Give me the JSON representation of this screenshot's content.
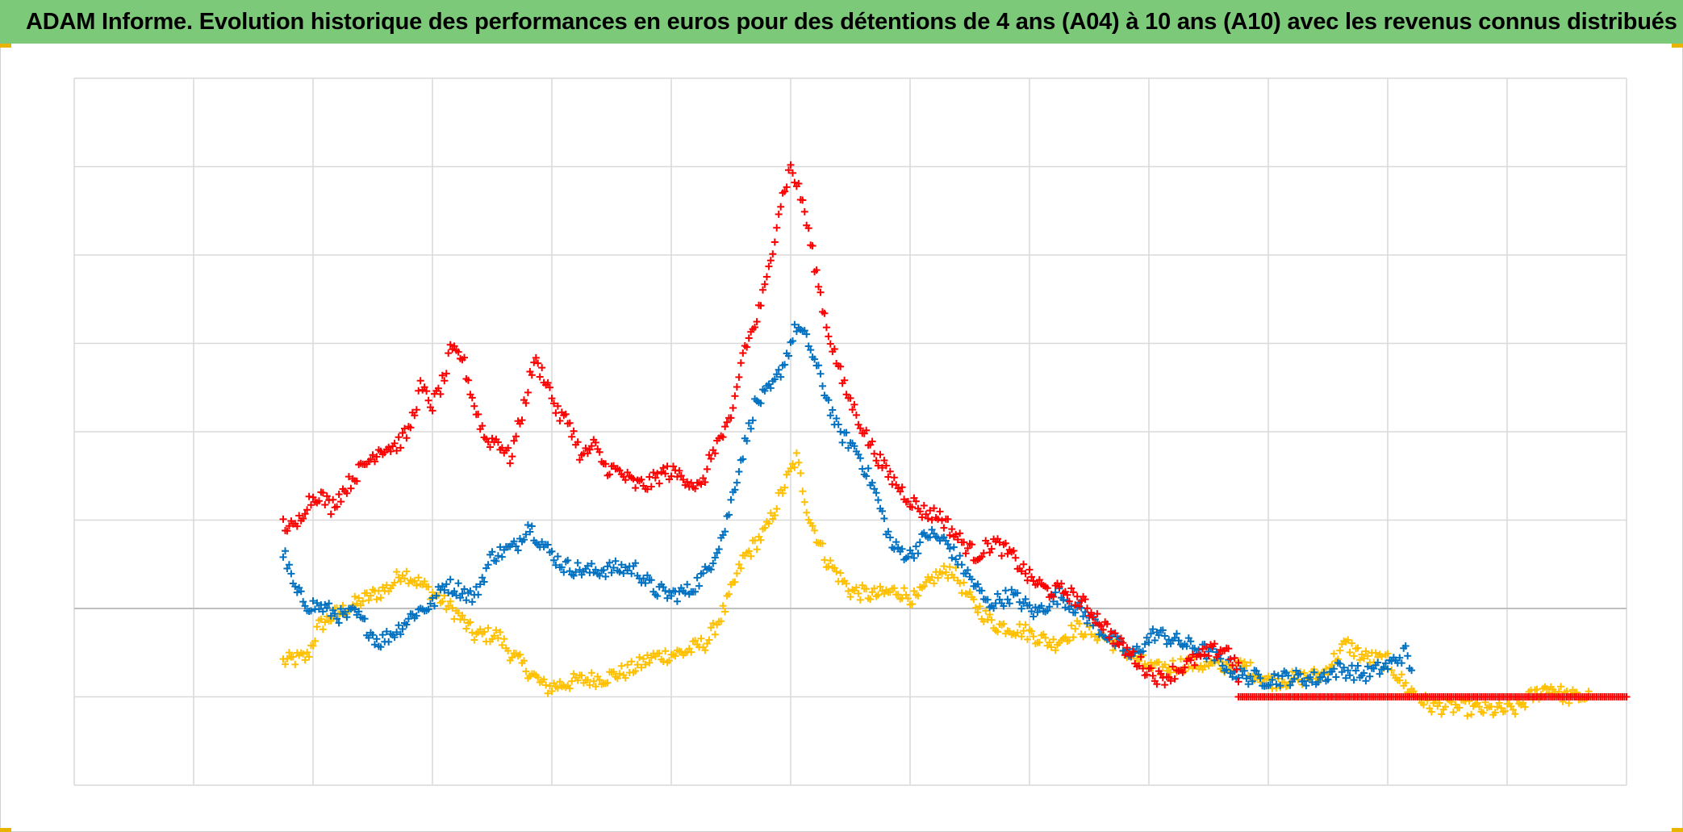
{
  "title": "ADAM Informe. Evolution historique des performances en euros pour des détentions de 4 ans (A04) à 10 ans (A10) avec les revenus connus distribués",
  "colors": {
    "title_background": "#7dc97a",
    "grid": "#d9d9d9",
    "zero_line": "#bfbfbf",
    "corner_accent": "#e8b400"
  },
  "chart_data": {
    "type": "scatter",
    "title": "ADAM Informe. Evolution historique des performances en euros pour des détentions de 4 ans (A04) à 10 ans (A10) avec les revenus connus distribués",
    "xlabel": "",
    "ylabel": "",
    "tick_labels_shown": false,
    "legend": "none",
    "grid": true,
    "marker": "plus",
    "xlim": [
      0,
      13
    ],
    "ylim": [
      -2,
      6
    ],
    "x_gridlines": [
      0,
      1,
      2,
      3,
      4,
      5,
      6,
      7,
      8,
      9,
      10,
      11,
      12,
      13
    ],
    "y_gridlines": [
      -2,
      -1,
      0,
      1,
      2,
      3,
      4,
      5,
      6
    ],
    "series": [
      {
        "color": "#ffc000",
        "points": [
          [
            1.75,
            -0.6
          ],
          [
            1.95,
            -0.55
          ],
          [
            2.05,
            -0.2
          ],
          [
            2.15,
            -0.1
          ],
          [
            2.35,
            0.05
          ],
          [
            2.65,
            0.25
          ],
          [
            2.75,
            0.42
          ],
          [
            2.9,
            0.28
          ],
          [
            3.05,
            0.12
          ],
          [
            3.2,
            -0.05
          ],
          [
            3.35,
            -0.3
          ],
          [
            3.55,
            -0.3
          ],
          [
            3.65,
            -0.5
          ],
          [
            3.8,
            -0.7
          ],
          [
            3.95,
            -0.9
          ],
          [
            4.2,
            -0.82
          ],
          [
            4.45,
            -0.78
          ],
          [
            4.65,
            -0.7
          ],
          [
            4.85,
            -0.55
          ],
          [
            5.1,
            -0.5
          ],
          [
            5.3,
            -0.38
          ],
          [
            5.45,
            0.0
          ],
          [
            5.6,
            0.55
          ],
          [
            5.8,
            0.9
          ],
          [
            5.95,
            1.4
          ],
          [
            6.05,
            1.7
          ],
          [
            6.15,
            1.05
          ],
          [
            6.3,
            0.55
          ],
          [
            6.5,
            0.2
          ],
          [
            6.7,
            0.15
          ],
          [
            6.9,
            0.2
          ],
          [
            7.05,
            0.1
          ],
          [
            7.2,
            0.35
          ],
          [
            7.35,
            0.45
          ],
          [
            7.5,
            0.1
          ],
          [
            7.7,
            -0.18
          ],
          [
            7.95,
            -0.25
          ],
          [
            8.2,
            -0.4
          ],
          [
            8.4,
            -0.22
          ],
          [
            8.6,
            -0.3
          ],
          [
            8.85,
            -0.52
          ],
          [
            9.05,
            -0.7
          ],
          [
            9.3,
            -0.62
          ],
          [
            9.55,
            -0.65
          ],
          [
            9.8,
            -0.65
          ],
          [
            10.0,
            -0.82
          ],
          [
            10.2,
            -0.8
          ],
          [
            10.45,
            -0.75
          ],
          [
            10.65,
            -0.4
          ],
          [
            10.8,
            -0.55
          ],
          [
            11.0,
            -0.6
          ],
          [
            11.15,
            -0.88
          ],
          [
            11.35,
            -1.1
          ],
          [
            11.6,
            -1.12
          ],
          [
            11.85,
            -1.15
          ],
          [
            12.05,
            -1.15
          ],
          [
            12.2,
            -1.0
          ],
          [
            12.35,
            -0.88
          ],
          [
            12.5,
            -1.0
          ],
          [
            12.7,
            -1.0
          ]
        ]
      },
      {
        "color": "#0070c0",
        "points": [
          [
            1.75,
            0.65
          ],
          [
            1.85,
            0.2
          ],
          [
            1.95,
            0.05
          ],
          [
            2.1,
            0.0
          ],
          [
            2.25,
            -0.1
          ],
          [
            2.35,
            -0.05
          ],
          [
            2.55,
            -0.38
          ],
          [
            2.7,
            -0.25
          ],
          [
            2.85,
            -0.05
          ],
          [
            3.0,
            0.05
          ],
          [
            3.1,
            0.28
          ],
          [
            3.25,
            0.2
          ],
          [
            3.35,
            0.12
          ],
          [
            3.5,
            0.6
          ],
          [
            3.7,
            0.7
          ],
          [
            3.8,
            0.95
          ],
          [
            3.95,
            0.68
          ],
          [
            4.1,
            0.48
          ],
          [
            4.3,
            0.42
          ],
          [
            4.5,
            0.45
          ],
          [
            4.7,
            0.45
          ],
          [
            4.85,
            0.22
          ],
          [
            5.0,
            0.15
          ],
          [
            5.15,
            0.2
          ],
          [
            5.3,
            0.42
          ],
          [
            5.45,
            0.9
          ],
          [
            5.55,
            1.5
          ],
          [
            5.7,
            2.3
          ],
          [
            5.85,
            2.5
          ],
          [
            5.95,
            2.8
          ],
          [
            6.05,
            3.2
          ],
          [
            6.15,
            3.0
          ],
          [
            6.25,
            2.6
          ],
          [
            6.4,
            2.0
          ],
          [
            6.55,
            1.8
          ],
          [
            6.7,
            1.35
          ],
          [
            6.85,
            0.7
          ],
          [
            7.0,
            0.6
          ],
          [
            7.15,
            0.85
          ],
          [
            7.3,
            0.75
          ],
          [
            7.5,
            0.35
          ],
          [
            7.65,
            0.05
          ],
          [
            7.85,
            0.15
          ],
          [
            8.05,
            -0.05
          ],
          [
            8.25,
            0.15
          ],
          [
            8.45,
            -0.05
          ],
          [
            8.65,
            -0.3
          ],
          [
            8.85,
            -0.55
          ],
          [
            9.05,
            -0.28
          ],
          [
            9.3,
            -0.4
          ],
          [
            9.5,
            -0.5
          ],
          [
            9.75,
            -0.75
          ],
          [
            9.95,
            -0.8
          ],
          [
            10.2,
            -0.78
          ],
          [
            10.4,
            -0.8
          ],
          [
            10.6,
            -0.68
          ],
          [
            10.8,
            -0.75
          ],
          [
            11.0,
            -0.65
          ],
          [
            11.15,
            -0.5
          ],
          [
            11.2,
            -0.7
          ]
        ]
      },
      {
        "color": "#ff0000",
        "points": [
          [
            1.75,
            0.95
          ],
          [
            1.85,
            0.9
          ],
          [
            1.95,
            1.2
          ],
          [
            2.05,
            1.3
          ],
          [
            2.15,
            1.15
          ],
          [
            2.35,
            1.5
          ],
          [
            2.55,
            1.8
          ],
          [
            2.7,
            1.85
          ],
          [
            2.8,
            2.0
          ],
          [
            2.9,
            2.5
          ],
          [
            3.0,
            2.3
          ],
          [
            3.1,
            2.6
          ],
          [
            3.15,
            2.9
          ],
          [
            3.25,
            2.85
          ],
          [
            3.35,
            2.3
          ],
          [
            3.45,
            1.9
          ],
          [
            3.55,
            1.9
          ],
          [
            3.65,
            1.7
          ],
          [
            3.75,
            2.2
          ],
          [
            3.85,
            2.8
          ],
          [
            3.95,
            2.6
          ],
          [
            4.05,
            2.2
          ],
          [
            4.15,
            2.1
          ],
          [
            4.25,
            1.7
          ],
          [
            4.35,
            1.85
          ],
          [
            4.45,
            1.6
          ],
          [
            4.55,
            1.55
          ],
          [
            4.7,
            1.4
          ],
          [
            4.8,
            1.4
          ],
          [
            4.95,
            1.55
          ],
          [
            5.1,
            1.5
          ],
          [
            5.25,
            1.35
          ],
          [
            5.35,
            1.8
          ],
          [
            5.5,
            2.1
          ],
          [
            5.6,
            2.9
          ],
          [
            5.7,
            3.2
          ],
          [
            5.8,
            3.7
          ],
          [
            5.9,
            4.5
          ],
          [
            6.0,
            5.0
          ],
          [
            6.1,
            4.6
          ],
          [
            6.2,
            3.9
          ],
          [
            6.3,
            3.2
          ],
          [
            6.45,
            2.5
          ],
          [
            6.55,
            2.2
          ],
          [
            6.65,
            1.9
          ],
          [
            6.8,
            1.55
          ],
          [
            6.95,
            1.3
          ],
          [
            7.1,
            1.1
          ],
          [
            7.25,
            1.05
          ],
          [
            7.4,
            0.8
          ],
          [
            7.55,
            0.6
          ],
          [
            7.7,
            0.75
          ],
          [
            7.85,
            0.6
          ],
          [
            8.0,
            0.35
          ],
          [
            8.15,
            0.2
          ],
          [
            8.3,
            0.2
          ],
          [
            8.45,
            0.05
          ],
          [
            8.6,
            -0.15
          ],
          [
            8.75,
            -0.4
          ],
          [
            8.95,
            -0.65
          ],
          [
            9.1,
            -0.8
          ],
          [
            9.3,
            -0.65
          ],
          [
            9.5,
            -0.5
          ],
          [
            9.65,
            -0.45
          ],
          [
            9.75,
            -0.7
          ],
          [
            9.75,
            -1.0
          ],
          [
            10.5,
            -1.0
          ],
          [
            11.5,
            -1.0
          ],
          [
            12.5,
            -1.0
          ],
          [
            13.0,
            -1.0
          ]
        ]
      }
    ]
  }
}
